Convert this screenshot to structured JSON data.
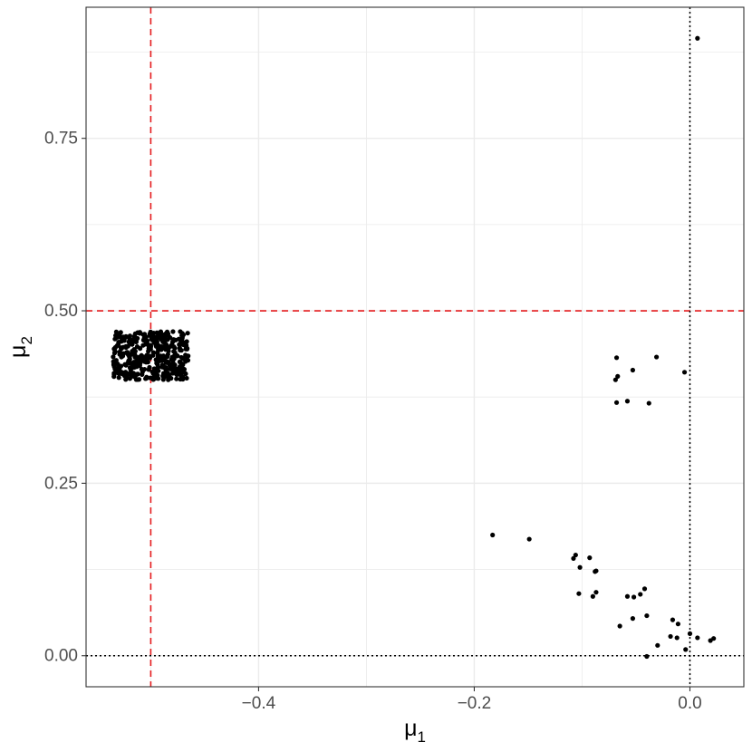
{
  "chart_data": {
    "type": "scatter",
    "title": "",
    "xlabel": "μ",
    "xlabel_sub": "1",
    "ylabel": "μ",
    "ylabel_sub": "2",
    "xlim": [
      -0.56,
      0.05
    ],
    "ylim": [
      -0.045,
      0.94
    ],
    "x_ticks": [
      {
        "value": -0.4,
        "label": "−0.4"
      },
      {
        "value": -0.2,
        "label": "−0.2"
      },
      {
        "value": 0.0,
        "label": "0.0"
      }
    ],
    "y_ticks": [
      {
        "value": 0.0,
        "label": "0.00"
      },
      {
        "value": 0.25,
        "label": "0.25"
      },
      {
        "value": 0.5,
        "label": "0.50"
      },
      {
        "value": 0.75,
        "label": "0.75"
      }
    ],
    "grid": true,
    "legend": "none",
    "colors": {
      "points": "#000000",
      "reference_lines": "#e41a1c",
      "zero_lines": "#000000",
      "panel_border": "#333333",
      "grid": "#ebebeb"
    },
    "reference_lines": [
      {
        "orientation": "vertical",
        "value": -0.5,
        "style": "dashed",
        "color": "#e41a1c"
      },
      {
        "orientation": "horizontal",
        "value": 0.5,
        "style": "dashed",
        "color": "#e41a1c"
      },
      {
        "orientation": "vertical",
        "value": 0.0,
        "style": "dotted",
        "color": "#000000"
      },
      {
        "orientation": "horizontal",
        "value": 0.0,
        "style": "dotted",
        "color": "#000000"
      }
    ],
    "cluster": {
      "description": "dense cluster of ~400 points",
      "x_range": [
        -0.535,
        -0.465
      ],
      "y_range": [
        0.395,
        0.47
      ],
      "count": 400
    },
    "points": [
      {
        "x": 0.007,
        "y": 0.895
      },
      {
        "x": -0.068,
        "y": 0.432
      },
      {
        "x": -0.031,
        "y": 0.433
      },
      {
        "x": -0.053,
        "y": 0.414
      },
      {
        "x": -0.067,
        "y": 0.405
      },
      {
        "x": -0.069,
        "y": 0.4
      },
      {
        "x": -0.005,
        "y": 0.411
      },
      {
        "x": -0.068,
        "y": 0.367
      },
      {
        "x": -0.058,
        "y": 0.369
      },
      {
        "x": -0.038,
        "y": 0.366
      },
      {
        "x": -0.183,
        "y": 0.175
      },
      {
        "x": -0.149,
        "y": 0.169
      },
      {
        "x": -0.106,
        "y": 0.146
      },
      {
        "x": -0.108,
        "y": 0.141
      },
      {
        "x": -0.093,
        "y": 0.142
      },
      {
        "x": -0.102,
        "y": 0.128
      },
      {
        "x": -0.087,
        "y": 0.123
      },
      {
        "x": -0.088,
        "y": 0.122
      },
      {
        "x": -0.103,
        "y": 0.09
      },
      {
        "x": -0.087,
        "y": 0.092
      },
      {
        "x": -0.09,
        "y": 0.086
      },
      {
        "x": -0.042,
        "y": 0.097
      },
      {
        "x": -0.046,
        "y": 0.089
      },
      {
        "x": -0.058,
        "y": 0.086
      },
      {
        "x": -0.052,
        "y": 0.085
      },
      {
        "x": -0.04,
        "y": 0.058
      },
      {
        "x": -0.053,
        "y": 0.054
      },
      {
        "x": -0.065,
        "y": 0.043
      },
      {
        "x": -0.016,
        "y": 0.052
      },
      {
        "x": -0.011,
        "y": 0.046
      },
      {
        "x": 0.0,
        "y": 0.032
      },
      {
        "x": -0.018,
        "y": 0.028
      },
      {
        "x": -0.012,
        "y": 0.026
      },
      {
        "x": 0.007,
        "y": 0.026
      },
      {
        "x": 0.022,
        "y": 0.025
      },
      {
        "x": 0.019,
        "y": 0.022
      },
      {
        "x": -0.03,
        "y": 0.015
      },
      {
        "x": -0.004,
        "y": 0.009
      },
      {
        "x": -0.04,
        "y": -0.001
      }
    ]
  }
}
